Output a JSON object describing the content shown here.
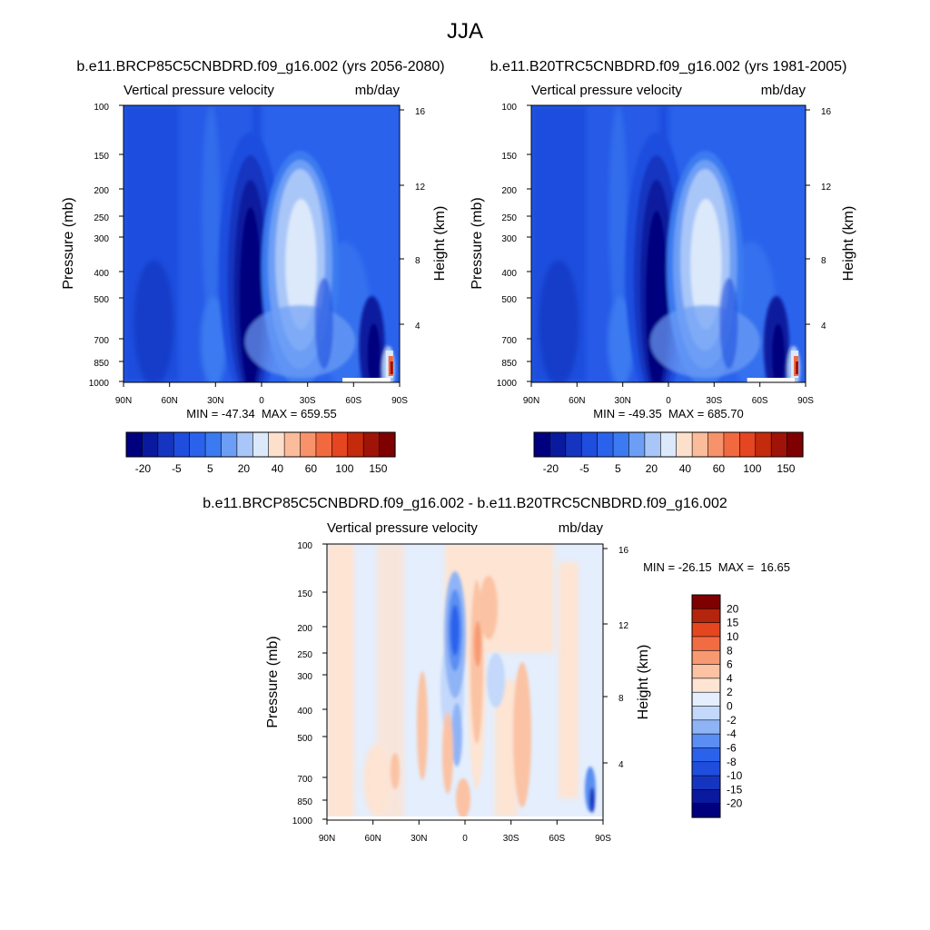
{
  "figure": {
    "title": "JJA"
  },
  "chart_data": [
    {
      "type": "heatmap",
      "title": "b.e11.BRCP85C5CNBDRD.f09_g16.002 (yrs 2056-2080)",
      "left_label": "Vertical pressure velocity",
      "right_label": "mb/day",
      "ylabel": "Pressure (mb)",
      "ylabel_right": "Height (km)",
      "x_ticks": [
        "90N",
        "60N",
        "30N",
        "0",
        "30S",
        "60S",
        "90S"
      ],
      "x_values": [
        90,
        60,
        30,
        0,
        -30,
        -60,
        -90
      ],
      "y_ticks": [
        "100",
        "150",
        "200",
        "250",
        "300",
        "400",
        "500",
        "700",
        "850",
        "1000"
      ],
      "y_values": [
        100,
        150,
        200,
        250,
        300,
        400,
        500,
        700,
        850,
        1000
      ],
      "y_right_ticks": [
        "16",
        "12",
        "8",
        "4"
      ],
      "y_right_values": [
        16,
        12,
        8,
        4
      ],
      "ylim": [
        1000,
        100
      ],
      "xlim": [
        90,
        -90
      ],
      "stats": "MIN = -47.34  MAX = 659.55",
      "contour_levels": [
        -20,
        -15,
        -10,
        -5,
        -2,
        5,
        10,
        20,
        30,
        40,
        50,
        60,
        80,
        100,
        120,
        150
      ],
      "colorbar_labels": [
        "-20",
        "-5",
        "5",
        "20",
        "40",
        "60",
        "100",
        "150"
      ],
      "colorbar_orientation": "horizontal"
    },
    {
      "type": "heatmap",
      "title": "b.e11.B20TRC5CNBDRD.f09_g16.002 (yrs 1981-2005)",
      "left_label": "Vertical pressure velocity",
      "right_label": "mb/day",
      "ylabel": "Pressure (mb)",
      "ylabel_right": "Height (km)",
      "x_ticks": [
        "90N",
        "60N",
        "30N",
        "0",
        "30S",
        "60S",
        "90S"
      ],
      "x_values": [
        90,
        60,
        30,
        0,
        -30,
        -60,
        -90
      ],
      "y_ticks": [
        "100",
        "150",
        "200",
        "250",
        "300",
        "400",
        "500",
        "700",
        "850",
        "1000"
      ],
      "y_values": [
        100,
        150,
        200,
        250,
        300,
        400,
        500,
        700,
        850,
        1000
      ],
      "y_right_ticks": [
        "16",
        "12",
        "8",
        "4"
      ],
      "y_right_values": [
        16,
        12,
        8,
        4
      ],
      "ylim": [
        1000,
        100
      ],
      "xlim": [
        90,
        -90
      ],
      "stats": "MIN = -49.35  MAX = 685.70",
      "contour_levels": [
        -20,
        -15,
        -10,
        -5,
        -2,
        5,
        10,
        20,
        30,
        40,
        50,
        60,
        80,
        100,
        120,
        150
      ],
      "colorbar_labels": [
        "-20",
        "-5",
        "5",
        "20",
        "40",
        "60",
        "100",
        "150"
      ],
      "colorbar_orientation": "horizontal"
    },
    {
      "type": "heatmap",
      "title": "b.e11.BRCP85C5CNBDRD.f09_g16.002 - b.e11.B20TRC5CNBDRD.f09_g16.002",
      "left_label": "Vertical pressure velocity",
      "right_label": "mb/day",
      "ylabel": "Pressure (mb)",
      "ylabel_right": "Height (km)",
      "x_ticks": [
        "90N",
        "60N",
        "30N",
        "0",
        "30S",
        "60S",
        "90S"
      ],
      "x_values": [
        90,
        60,
        30,
        0,
        -30,
        -60,
        -90
      ],
      "y_ticks": [
        "100",
        "150",
        "200",
        "250",
        "300",
        "400",
        "500",
        "700",
        "850",
        "1000"
      ],
      "y_values": [
        100,
        150,
        200,
        250,
        300,
        400,
        500,
        700,
        850,
        1000
      ],
      "y_right_ticks": [
        "16",
        "12",
        "8",
        "4"
      ],
      "y_right_values": [
        16,
        12,
        8,
        4
      ],
      "ylim": [
        1000,
        100
      ],
      "xlim": [
        90,
        -90
      ],
      "stats": "MIN = -26.15  MAX =  16.65",
      "contour_levels": [
        -20,
        -15,
        -10,
        -8,
        -6,
        -4,
        -2,
        0,
        2,
        4,
        6,
        8,
        10,
        15,
        20
      ],
      "colorbar_labels": [
        "20",
        "15",
        "10",
        "8",
        "6",
        "4",
        "2",
        "0",
        "-2",
        "-4",
        "-6",
        "-8",
        "-10",
        "-15",
        "-20"
      ],
      "colorbar_orientation": "vertical"
    }
  ],
  "palettes": {
    "main": [
      "#00007f",
      "#0a1a9e",
      "#1535c0",
      "#1f4ede",
      "#2a62ec",
      "#3b7af0",
      "#6d9ef5",
      "#a9c6f8",
      "#dce9fb",
      "#fde0cc",
      "#fbbc9c",
      "#f7926a",
      "#f26940",
      "#e54520",
      "#c42a0c",
      "#a01308",
      "#7f0000"
    ],
    "diff": [
      "#00007f",
      "#0a1a9e",
      "#1535c0",
      "#1f4ede",
      "#2a62ec",
      "#5a8ef2",
      "#8fb4f6",
      "#c3d8fa",
      "#e4eefd",
      "#fde4d3",
      "#fbc2a3",
      "#f79a72",
      "#f26c43",
      "#e4461f",
      "#b3250d",
      "#7f0000"
    ]
  }
}
